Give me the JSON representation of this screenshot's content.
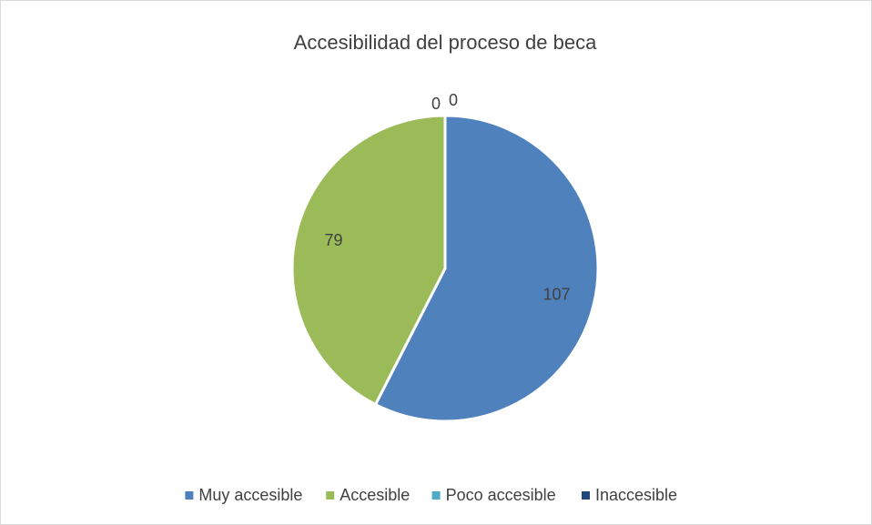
{
  "chart_data": {
    "type": "pie",
    "title": "Accesibilidad del proceso de beca",
    "categories": [
      "Muy accesible",
      "Accesible",
      "Poco accesible",
      "Inaccesible"
    ],
    "values": [
      107,
      79,
      0,
      0
    ],
    "colors": [
      "#4f81bd",
      "#9bbb59",
      "#4bacc6",
      "#1f497d"
    ],
    "legend": "bottom"
  }
}
